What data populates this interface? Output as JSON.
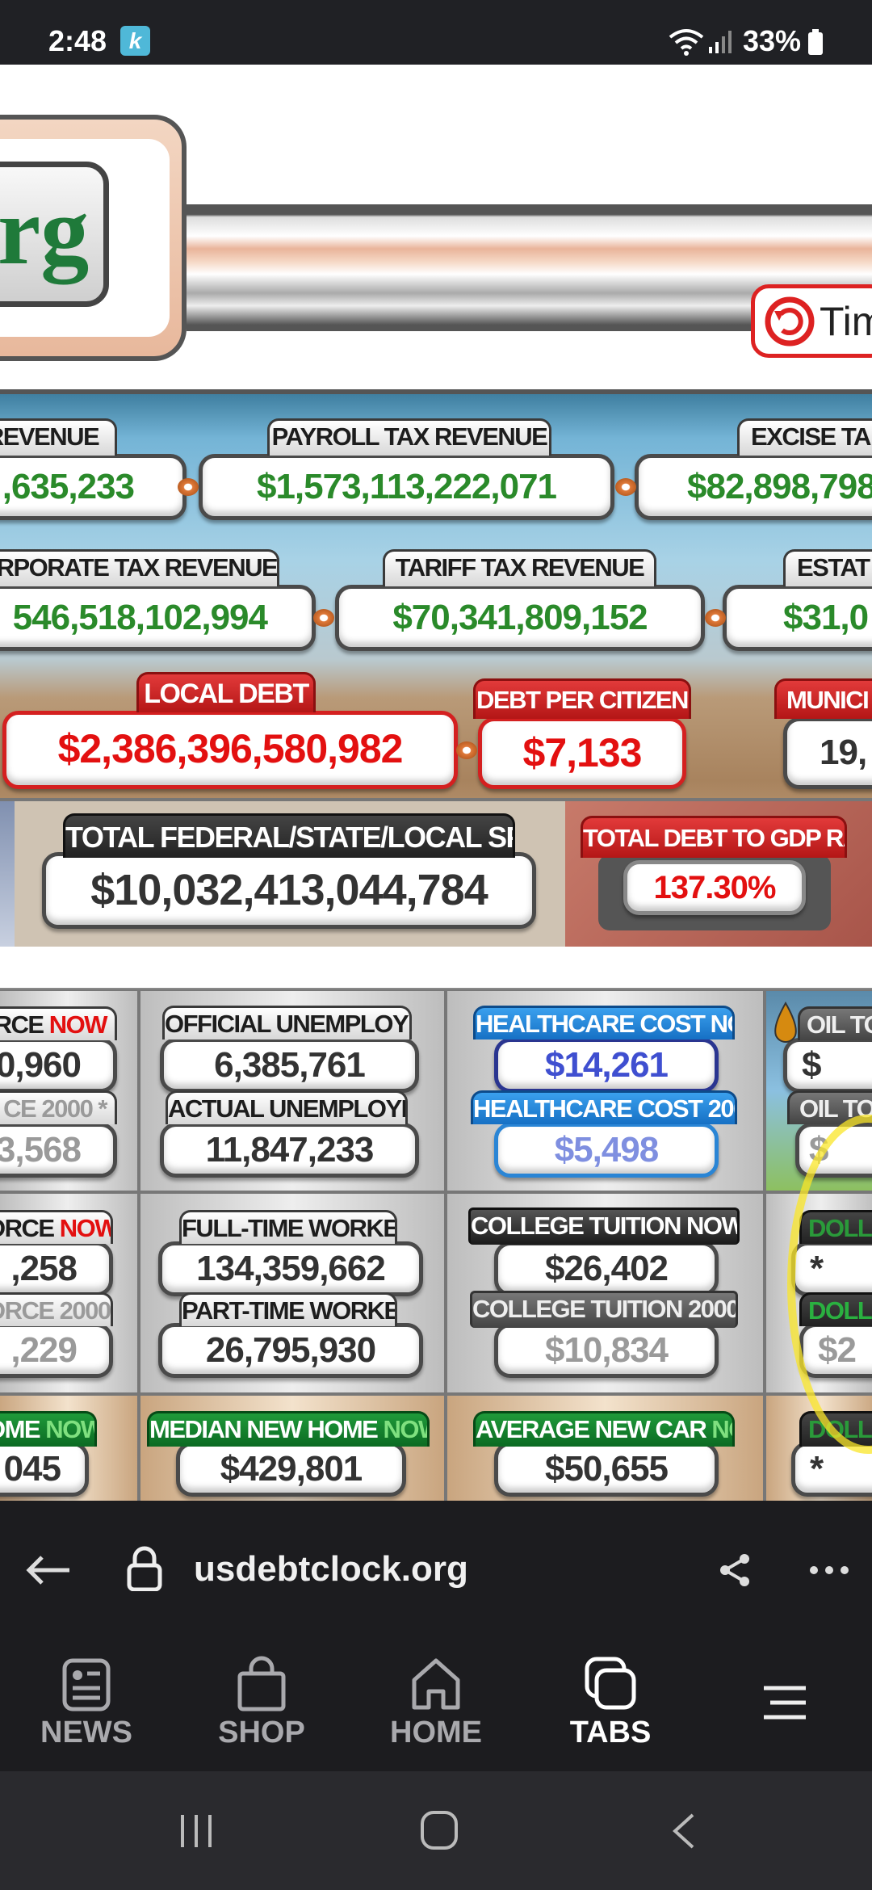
{
  "status_bar": {
    "time": "2:48",
    "app_badge": "k",
    "battery": "33%"
  },
  "page": {
    "logo_text": "rg",
    "time_button": "Tim",
    "row1": [
      {
        "label": "REVENUE",
        "value": ",635,233"
      },
      {
        "label": "PAYROLL TAX REVENUE",
        "value": "$1,573,113,222,071"
      },
      {
        "label": "EXCISE TA",
        "value": "$82,898,798"
      }
    ],
    "row2": [
      {
        "label": "ORPORATE TAX REVENUE",
        "value": "546,518,102,994"
      },
      {
        "label": "TARIFF TAX REVENUE",
        "value": "$70,341,809,152"
      },
      {
        "label": "ESTAT",
        "value": "$31,0"
      }
    ],
    "row3": [
      {
        "label": "LOCAL DEBT",
        "value": "$2,386,396,580,982"
      },
      {
        "label": "DEBT PER CITIZEN",
        "value": "$7,133"
      },
      {
        "label": "MUNICI",
        "value": "19,"
      }
    ],
    "spending": {
      "label": "TOTAL FEDERAL/STATE/LOCAL SPENDING",
      "value": "$10,032,413,044,784"
    },
    "gdp": {
      "label": "TOTAL DEBT TO GDP RATIO",
      "value": "137.30%"
    },
    "grid": {
      "labor_now": {
        "label": "RCE ",
        "now": "NOW",
        "value": "0,960"
      },
      "labor_2000": {
        "label": "CE 2000 *",
        "value": "3,568"
      },
      "official_unemployed": {
        "label": "OFFICIAL UNEMPLOYED",
        "value": "6,385,761"
      },
      "actual_unemployed": {
        "label": "ACTUAL UNEMPLOYED",
        "value": "11,847,233"
      },
      "healthcare_now": {
        "label": "HEALTHCARE COST NOW",
        "value": "$14,261"
      },
      "healthcare_2000": {
        "label": "HEALTHCARE COST 2000",
        "value": "$5,498"
      },
      "oil_now": {
        "label": "OIL TO",
        "value": "$"
      },
      "oil_2000": {
        "label": "OIL TO",
        "value": "$"
      },
      "force_now": {
        "label": "ORCE ",
        "now": "NOW",
        "value": ",258"
      },
      "force_2000": {
        "label": "ORCE 2000*",
        "value": ",229"
      },
      "fulltime": {
        "label": "FULL-TIME WORKERS",
        "value": "134,359,662"
      },
      "parttime": {
        "label": "PART-TIME WORKERS",
        "value": "26,795,930"
      },
      "tuition_now": {
        "label": "COLLEGE TUITION  NOW",
        "value": "$26,402"
      },
      "tuition_2000": {
        "label": "COLLEGE TUITION 2000",
        "value": "$10,834"
      },
      "dollar_now": {
        "label": "DOLL",
        "value": "*"
      },
      "dollar_2000": {
        "label": "DOLLA",
        "value": "$2"
      },
      "home_now": {
        "label": "OME ",
        "now": "NOW",
        "value": "045"
      },
      "median_home": {
        "label": "MEDIAN NEW HOME ",
        "now": "NOW",
        "value": "$429,801"
      },
      "new_car": {
        "label": "AVERAGE NEW CAR ",
        "now": "NOW",
        "value": "$50,655"
      },
      "dollar3": {
        "label": "DOLLA",
        "value": "*"
      }
    }
  },
  "browser": {
    "url": "usdebtclock.org"
  },
  "bottom_nav": [
    {
      "label": "NEWS"
    },
    {
      "label": "SHOP"
    },
    {
      "label": "HOME"
    },
    {
      "label": "TABS"
    }
  ],
  "colors": {
    "revenue_green": "#2a8a2a",
    "debt_red": "#e31010",
    "healthcare_blue": "#3f4fd0",
    "browser_bg": "#1c1c1f"
  }
}
